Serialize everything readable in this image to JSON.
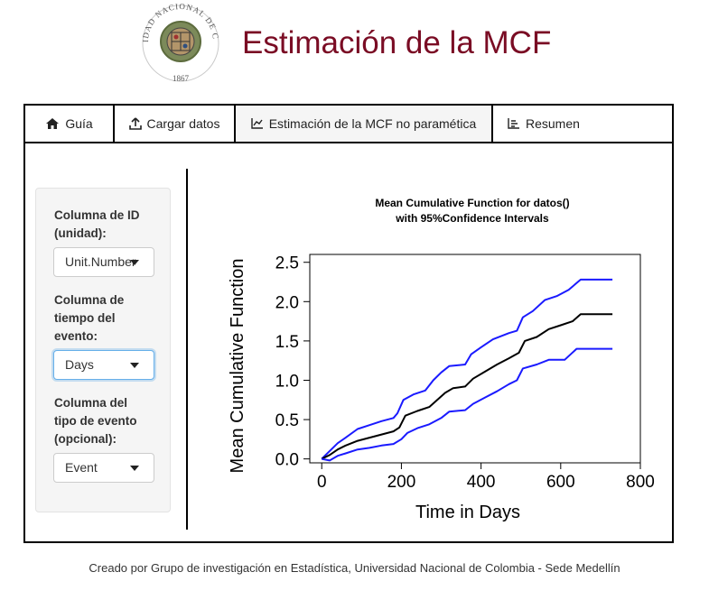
{
  "header": {
    "logo_text": "UNIVERSIDAD NACIONAL DE COLOMBIA",
    "logo_year": "1867",
    "title": "Estimación de la MCF"
  },
  "tabs": [
    {
      "label": "Guía",
      "icon": "home-icon",
      "active": false
    },
    {
      "label": "Cargar datos",
      "icon": "upload-icon",
      "active": false
    },
    {
      "label": "Estimación de la MCF no paramética",
      "icon": "line-chart-icon",
      "active": true
    },
    {
      "label": "Resumen",
      "icon": "list-icon",
      "active": false
    }
  ],
  "sidebar": {
    "id_label_1": "Columna de ID",
    "id_label_2": "(unidad):",
    "id_value": "Unit.Number",
    "time_label_1": "Columna de",
    "time_label_2": "tiempo del",
    "time_label_3": "evento:",
    "time_value": "Days",
    "type_label_1": "Columna del",
    "type_label_2": "tipo de evento",
    "type_label_3": "(opcional):",
    "type_value": "Event"
  },
  "chart_data": {
    "type": "line",
    "title_line1": "Mean Cumulative Function for datos()",
    "title_line2": "with 95%Confidence Intervals",
    "xlabel": "Time in Days",
    "ylabel": "Mean Cumulative Function",
    "xlim": [
      -30,
      800
    ],
    "ylim": [
      -0.05,
      2.6
    ],
    "xticks": [
      "0",
      "200",
      "400",
      "600",
      "800"
    ],
    "yticks": [
      "0.0",
      "0.5",
      "1.0",
      "1.5",
      "2.0",
      "2.5"
    ],
    "grid": false,
    "colors": {
      "mean": "#000000",
      "bounds": "#1a1aff"
    },
    "series": [
      {
        "name": "",
        "role": "upper",
        "points": [
          [
            0,
            0
          ],
          [
            20,
            0.1
          ],
          [
            40,
            0.2
          ],
          [
            60,
            0.27
          ],
          [
            90,
            0.38
          ],
          [
            120,
            0.43
          ],
          [
            150,
            0.48
          ],
          [
            180,
            0.52
          ],
          [
            190,
            0.58
          ],
          [
            205,
            0.75
          ],
          [
            230,
            0.82
          ],
          [
            260,
            0.87
          ],
          [
            280,
            1.0
          ],
          [
            300,
            1.1
          ],
          [
            320,
            1.18
          ],
          [
            360,
            1.2
          ],
          [
            375,
            1.33
          ],
          [
            400,
            1.42
          ],
          [
            430,
            1.52
          ],
          [
            470,
            1.6
          ],
          [
            490,
            1.63
          ],
          [
            505,
            1.8
          ],
          [
            530,
            1.88
          ],
          [
            560,
            2.02
          ],
          [
            590,
            2.07
          ],
          [
            620,
            2.15
          ],
          [
            650,
            2.28
          ],
          [
            670,
            2.28
          ],
          [
            730,
            2.28
          ]
        ]
      },
      {
        "name": "",
        "role": "mean",
        "points": [
          [
            0,
            0
          ],
          [
            20,
            0.05
          ],
          [
            40,
            0.12
          ],
          [
            60,
            0.17
          ],
          [
            90,
            0.23
          ],
          [
            120,
            0.27
          ],
          [
            150,
            0.31
          ],
          [
            180,
            0.35
          ],
          [
            195,
            0.4
          ],
          [
            210,
            0.55
          ],
          [
            240,
            0.61
          ],
          [
            270,
            0.66
          ],
          [
            290,
            0.75
          ],
          [
            310,
            0.84
          ],
          [
            330,
            0.9
          ],
          [
            360,
            0.92
          ],
          [
            380,
            1.02
          ],
          [
            410,
            1.11
          ],
          [
            440,
            1.2
          ],
          [
            470,
            1.28
          ],
          [
            495,
            1.35
          ],
          [
            510,
            1.5
          ],
          [
            540,
            1.55
          ],
          [
            570,
            1.65
          ],
          [
            600,
            1.7
          ],
          [
            630,
            1.75
          ],
          [
            650,
            1.84
          ],
          [
            730,
            1.84
          ]
        ]
      },
      {
        "name": "",
        "role": "lower",
        "points": [
          [
            0,
            0
          ],
          [
            20,
            -0.02
          ],
          [
            40,
            0.04
          ],
          [
            60,
            0.07
          ],
          [
            90,
            0.12
          ],
          [
            120,
            0.14
          ],
          [
            150,
            0.17
          ],
          [
            180,
            0.19
          ],
          [
            200,
            0.25
          ],
          [
            215,
            0.33
          ],
          [
            240,
            0.39
          ],
          [
            270,
            0.44
          ],
          [
            300,
            0.52
          ],
          [
            320,
            0.6
          ],
          [
            360,
            0.62
          ],
          [
            380,
            0.7
          ],
          [
            410,
            0.78
          ],
          [
            440,
            0.86
          ],
          [
            470,
            0.95
          ],
          [
            490,
            1.0
          ],
          [
            505,
            1.15
          ],
          [
            540,
            1.2
          ],
          [
            570,
            1.26
          ],
          [
            610,
            1.26
          ],
          [
            640,
            1.4
          ],
          [
            680,
            1.4
          ],
          [
            730,
            1.4
          ]
        ]
      }
    ]
  },
  "footer": {
    "text": "Creado por Grupo de investigación en Estadística, Universidad Nacional de Colombia - Sede Medellín"
  }
}
